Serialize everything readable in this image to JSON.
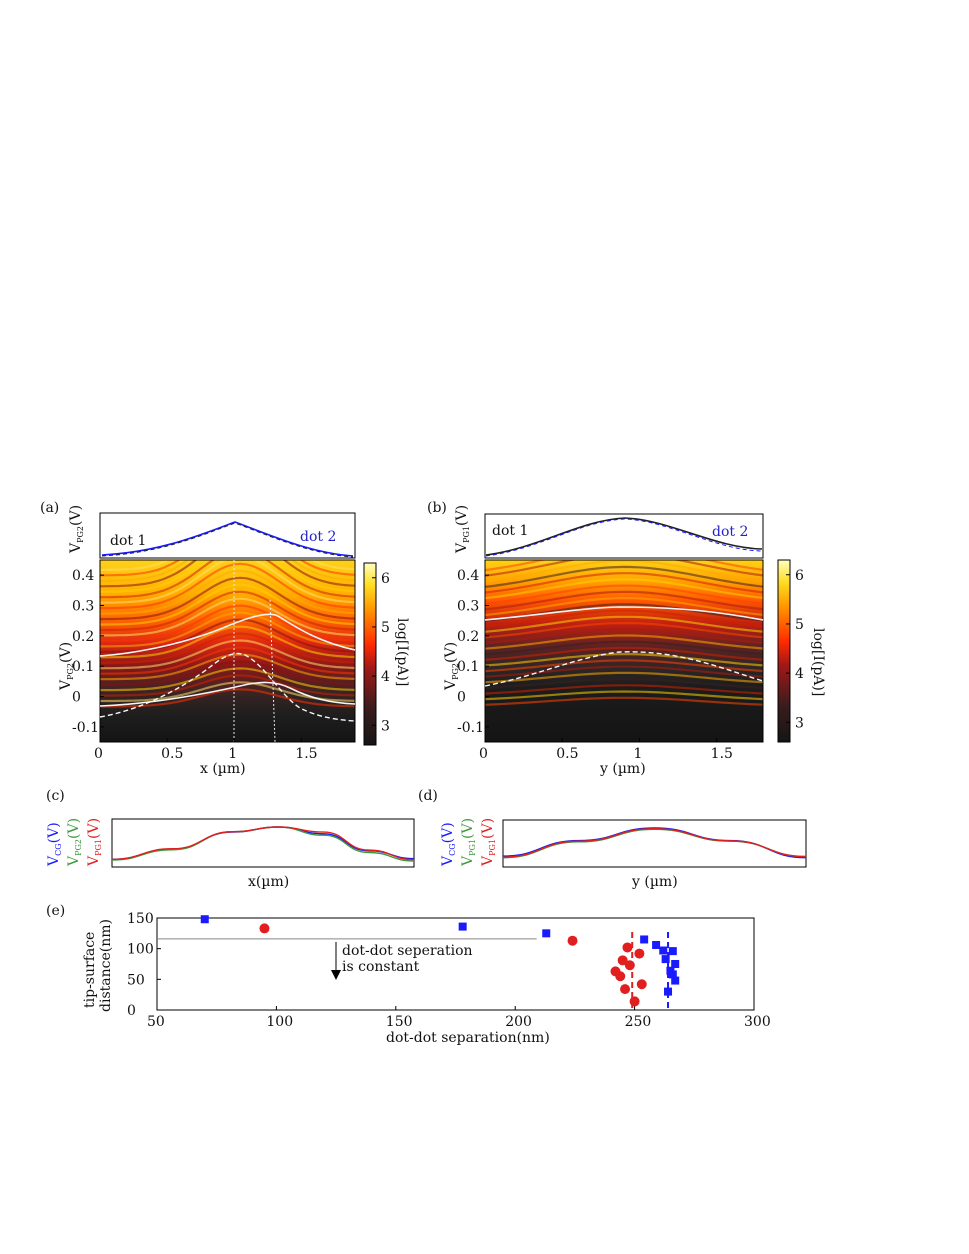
{
  "panels": {
    "a": "(a)",
    "b": "(b)",
    "c": "(c)",
    "d": "(d)",
    "e": "(e)"
  },
  "panel_a": {
    "top_ylabel_main": "V",
    "top_ylabel_sub": "PG2",
    "top_ylabel_unit": "(V)",
    "dot1": "dot 1",
    "dot2": "dot 2",
    "ylabel_main": "V",
    "ylabel_sub": "PG2",
    "ylabel_unit": "(V)",
    "xlabel": "x (µm)",
    "xticks": [
      "0",
      "0.5",
      "1",
      "1.5"
    ],
    "yticks": [
      "0.4",
      "0.3",
      "0.2",
      "0.1",
      "0",
      "-0.1"
    ],
    "colorbar_label": "log[I(pA)]",
    "colorbar_ticks": [
      "6",
      "5",
      "4",
      "3"
    ]
  },
  "panel_b": {
    "top_ylabel_main": "V",
    "top_ylabel_sub": "PG1",
    "top_ylabel_unit": "(V)",
    "dot1": "dot 1",
    "dot2": "dot 2",
    "ylabel_main": "V",
    "ylabel_sub": "PG2",
    "ylabel_unit": "(V)",
    "xlabel": "y (µm)",
    "xticks": [
      "0",
      "0.5",
      "1",
      "1.5"
    ],
    "yticks": [
      "0.4",
      "0.3",
      "0.2",
      "0.1",
      "0",
      "-0.1"
    ],
    "colorbar_label": "log[I(pA)]",
    "colorbar_ticks": [
      "6",
      "5",
      "4",
      "3"
    ]
  },
  "panel_c": {
    "labels": [
      {
        "main": "V",
        "sub": "CG",
        "unit": "(V)",
        "color": "#1a1aff"
      },
      {
        "main": "V",
        "sub": "PG2",
        "unit": "(V)",
        "color": "#3c9a3c"
      },
      {
        "main": "V",
        "sub": "PG1",
        "unit": "(V)",
        "color": "#e02020"
      }
    ],
    "xlabel": "x(µm)"
  },
  "panel_d": {
    "labels": [
      {
        "main": "V",
        "sub": "CG",
        "unit": "(V)",
        "color": "#1a1aff"
      },
      {
        "main": "V",
        "sub": "PG1",
        "unit": "(V)",
        "color": "#3c9a3c"
      },
      {
        "main": "V",
        "sub": "PG1",
        "unit": "(V)",
        "color": "#e02020"
      }
    ],
    "xlabel": "y (µm)"
  },
  "panel_e": {
    "ylabel_line1": "tip-surface",
    "ylabel_line2": "distance(nm)",
    "xlabel": "dot-dot separation(nm)",
    "annotation_line1": "dot-dot seperation",
    "annotation_line2": "is constant"
  },
  "chart_data": [
    {
      "type": "heatmap",
      "panel": "a",
      "xlabel": "x (µm)",
      "ylabel": "VPG2(V)",
      "xlim": [
        0,
        1.9
      ],
      "ylim": [
        -0.15,
        0.45
      ],
      "colorbar": {
        "label": "log[I(pA)]",
        "range": [
          2.6,
          6.3
        ],
        "colormap": "hot"
      },
      "top_profile": {
        "ylabel": "VPG2(V)",
        "shape": "single peak near x = 1.05"
      },
      "overlay_curves": [
        {
          "style": "solid-white",
          "x": [
            0,
            0.5,
            1.0,
            1.3,
            1.6,
            1.9
          ],
          "y": [
            0.13,
            0.15,
            0.2,
            0.27,
            0.2,
            0.15
          ]
        },
        {
          "style": "dashed-white",
          "x": [
            0,
            0.5,
            0.85,
            1.05,
            1.3,
            1.6,
            1.9
          ],
          "y": [
            -0.03,
            0.02,
            0.1,
            0.16,
            0.13,
            0.02,
            -0.02
          ]
        },
        {
          "style": "solid-white",
          "x": [
            0,
            0.5,
            1.0,
            1.3,
            1.6,
            1.9
          ],
          "y": [
            -0.01,
            0.01,
            0.06,
            0.08,
            0.04,
            0.01
          ]
        }
      ],
      "vertical_guides_x": [
        1.07,
        1.31
      ]
    },
    {
      "type": "heatmap",
      "panel": "b",
      "xlabel": "y (µm)",
      "ylabel": "VPG2(V)",
      "xlim": [
        0,
        1.8
      ],
      "ylim": [
        -0.15,
        0.45
      ],
      "colorbar": {
        "label": "log[I(pA)]",
        "range": [
          2.6,
          6.3
        ],
        "colormap": "hot"
      },
      "top_profile": {
        "ylabel": "VPG1(V)",
        "shape": "single peak near y = 0.88"
      },
      "overlay_curves": [
        {
          "style": "solid-white",
          "x": [
            0,
            0.45,
            0.88,
            1.35,
            1.8
          ],
          "y": [
            0.28,
            0.29,
            0.31,
            0.3,
            0.28
          ]
        },
        {
          "style": "dashed-white",
          "x": [
            0,
            0.45,
            0.88,
            1.35,
            1.8
          ],
          "y": [
            0.05,
            0.11,
            0.15,
            0.12,
            0.07
          ]
        }
      ]
    },
    {
      "type": "line",
      "panel": "c",
      "xlabel": "x(µm)",
      "series": [
        {
          "name": "VCG(V)",
          "color": "#1a1aff",
          "x": [
            0,
            0.2,
            0.4,
            0.55,
            0.7,
            0.85,
            1.0
          ],
          "y": [
            0.05,
            0.35,
            0.85,
            1.0,
            0.8,
            0.3,
            0.07
          ]
        },
        {
          "name": "VPG2(V)",
          "color": "#3c9a3c",
          "x": [
            0,
            0.2,
            0.4,
            0.55,
            0.7,
            0.85,
            1.0
          ],
          "y": [
            0.03,
            0.33,
            0.86,
            1.0,
            0.76,
            0.25,
            0.0
          ]
        },
        {
          "name": "VPG1(V)",
          "color": "#e02020",
          "x": [
            0,
            0.2,
            0.4,
            0.55,
            0.7,
            0.85,
            1.0
          ],
          "y": [
            0.05,
            0.36,
            0.86,
            1.0,
            0.85,
            0.32,
            0.04
          ]
        }
      ]
    },
    {
      "type": "line",
      "panel": "d",
      "xlabel": "y (µm)",
      "series": [
        {
          "name": "VCG(V)",
          "color": "#1a1aff",
          "x": [
            0,
            0.25,
            0.5,
            0.75,
            1.0
          ],
          "y": [
            0.15,
            0.62,
            1.0,
            0.62,
            0.1
          ]
        },
        {
          "name": "VPG1(V)",
          "color": "#3c9a3c",
          "x": [
            0,
            0.25,
            0.5,
            0.75,
            1.0
          ],
          "y": [
            0.1,
            0.58,
            0.96,
            0.6,
            0.14
          ]
        },
        {
          "name": "VPG1(V)",
          "color": "#e02020",
          "x": [
            0,
            0.25,
            0.5,
            0.75,
            1.0
          ],
          "y": [
            0.12,
            0.6,
            0.98,
            0.61,
            0.13
          ]
        }
      ]
    },
    {
      "type": "scatter",
      "panel": "e",
      "xlabel": "dot-dot separation(nm)",
      "ylabel": "tip-surface distance(nm)",
      "xlim": [
        50,
        300
      ],
      "ylim": [
        0,
        150
      ],
      "xticks": [
        50,
        100,
        150,
        200,
        250,
        300
      ],
      "yticks": [
        0,
        50,
        100,
        150
      ],
      "series": [
        {
          "marker": "square",
          "color": "#1a1aff",
          "x": [
            70,
            178,
            213,
            254,
            259,
            262,
            266,
            263,
            267,
            265,
            266,
            267,
            264
          ],
          "y": [
            148,
            136,
            125,
            115,
            106,
            97,
            96,
            83,
            75,
            64,
            58,
            48,
            30
          ]
        },
        {
          "marker": "circle",
          "color": "#e02020",
          "x": [
            95,
            224,
            247,
            252,
            245,
            248,
            242,
            244,
            253,
            246,
            250
          ],
          "y": [
            133,
            113,
            102,
            92,
            81,
            73,
            63,
            55,
            42,
            34,
            14
          ]
        }
      ],
      "vertical_dashed_lines": [
        {
          "x": 249,
          "color": "#e02020"
        },
        {
          "x": 264,
          "color": "#1a1aff"
        }
      ],
      "horizontal_reference": {
        "y": 116,
        "x_range": [
          50,
          209
        ]
      }
    }
  ]
}
